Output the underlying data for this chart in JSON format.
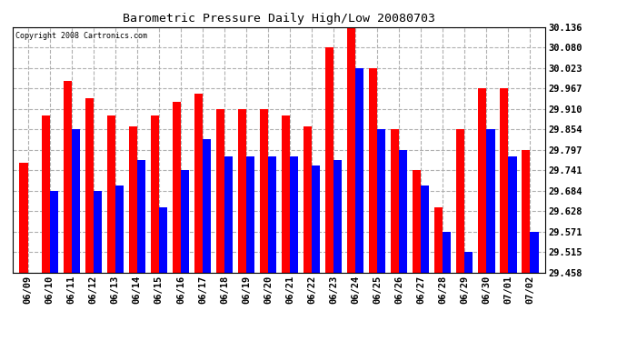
{
  "title": "Barometric Pressure Daily High/Low 20080703",
  "copyright": "Copyright 2008 Cartronics.com",
  "dates": [
    "06/09",
    "06/10",
    "06/11",
    "06/12",
    "06/13",
    "06/14",
    "06/15",
    "06/16",
    "06/17",
    "06/18",
    "06/19",
    "06/20",
    "06/21",
    "06/22",
    "06/23",
    "06/24",
    "06/25",
    "06/26",
    "06/27",
    "06/28",
    "06/29",
    "06/30",
    "07/01",
    "07/02"
  ],
  "highs": [
    29.762,
    29.893,
    29.988,
    29.94,
    29.893,
    29.863,
    29.893,
    29.93,
    29.952,
    29.91,
    29.91,
    29.91,
    29.893,
    29.863,
    30.08,
    30.136,
    30.023,
    29.854,
    29.741,
    29.638,
    29.854,
    29.967,
    29.967,
    29.797
  ],
  "lows": [
    29.458,
    29.684,
    29.854,
    29.684,
    29.7,
    29.77,
    29.638,
    29.741,
    29.828,
    29.78,
    29.78,
    29.78,
    29.78,
    29.754,
    29.77,
    30.023,
    29.854,
    29.797,
    29.7,
    29.571,
    29.515,
    29.854,
    29.78,
    29.571
  ],
  "high_color": "#ff0000",
  "low_color": "#0000ff",
  "bg_color": "#ffffff",
  "grid_color": "#b0b0b0",
  "yticks": [
    29.458,
    29.515,
    29.571,
    29.628,
    29.684,
    29.741,
    29.797,
    29.854,
    29.91,
    29.967,
    30.023,
    30.08,
    30.136
  ],
  "ymin": 29.458,
  "ymax": 30.136,
  "bar_width": 0.38,
  "fig_width": 6.9,
  "fig_height": 3.75,
  "dpi": 100
}
